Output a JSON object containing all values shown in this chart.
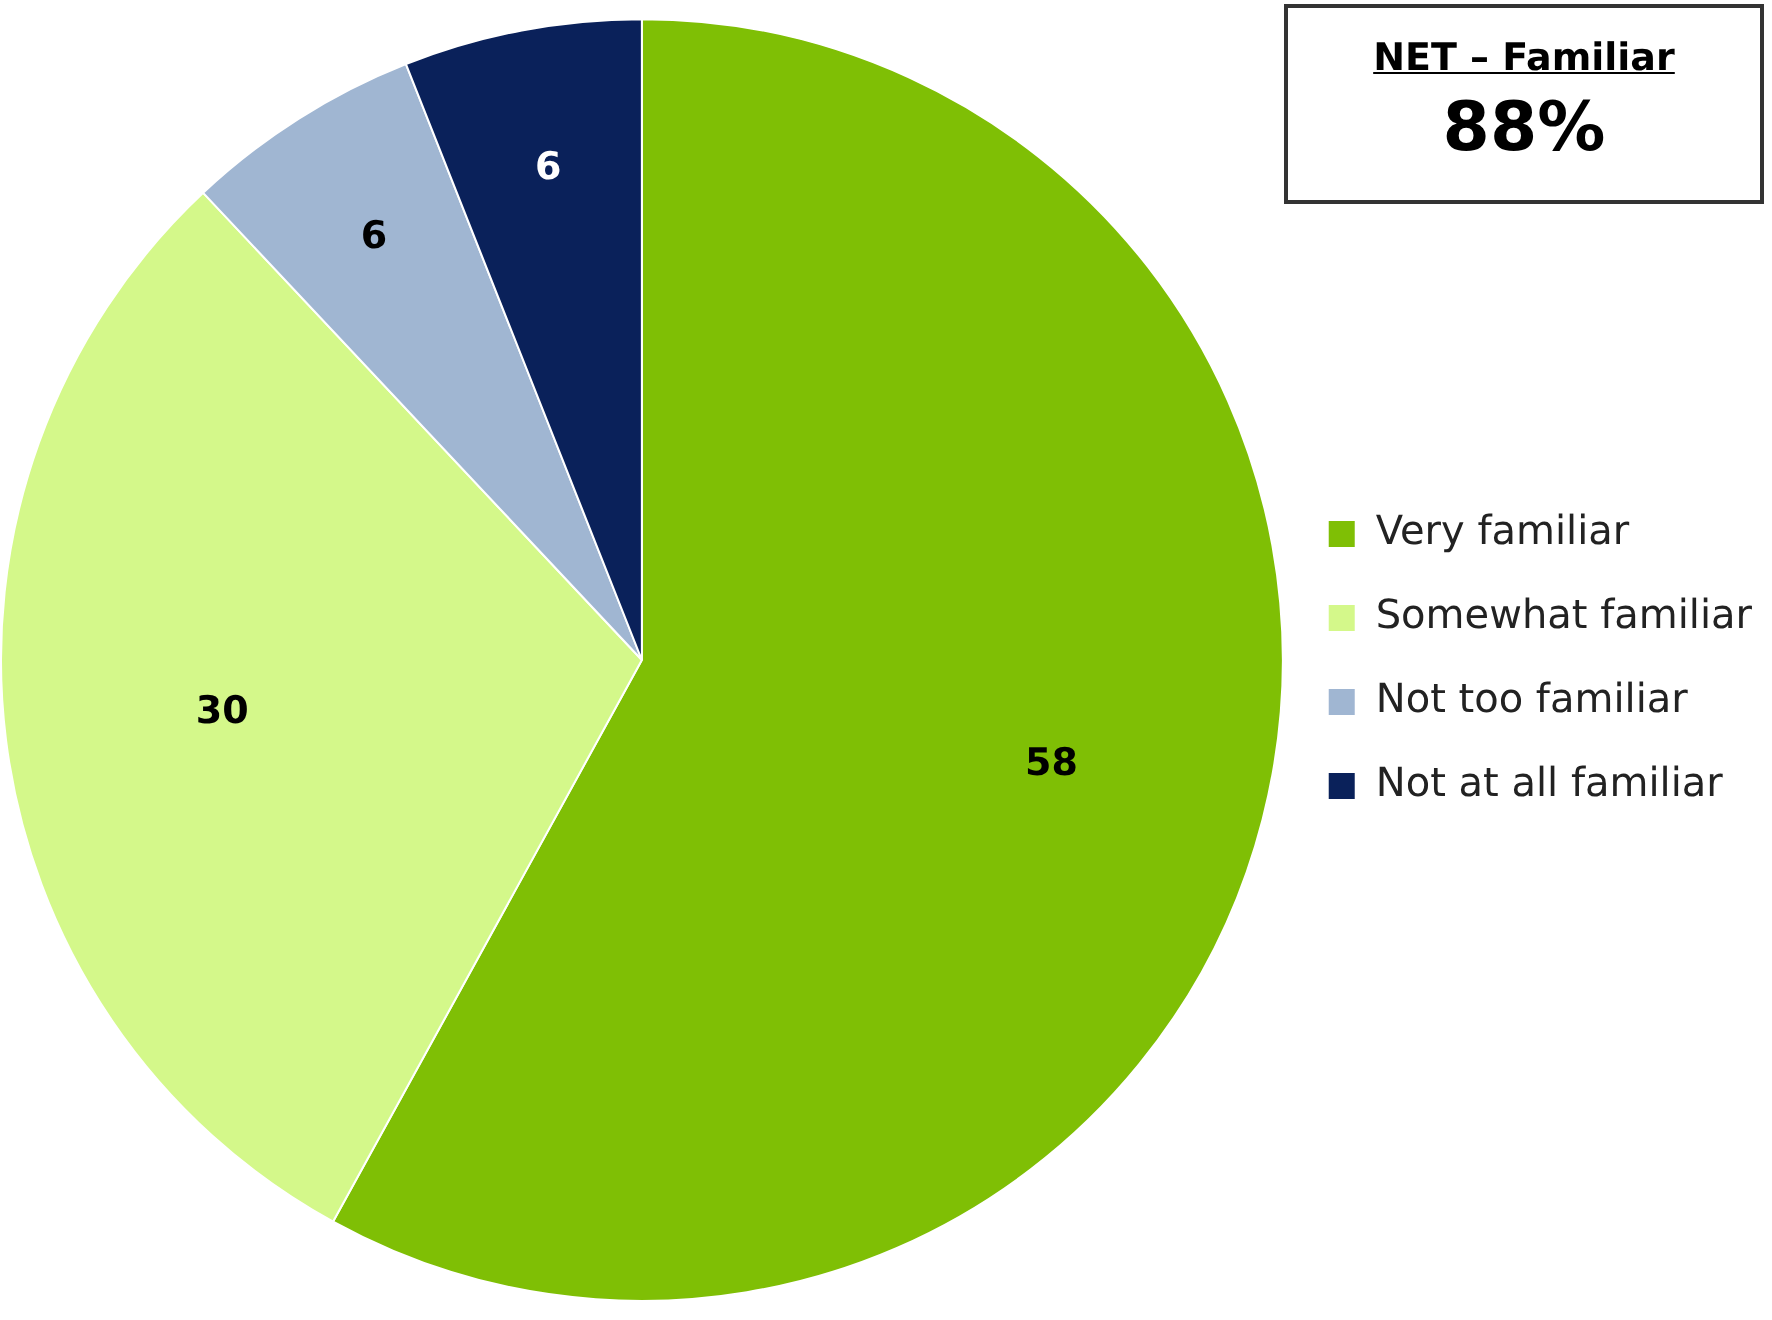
{
  "chart_data": {
    "type": "pie",
    "categories": [
      "Very familiar",
      "Somewhat familiar",
      "Not too familiar",
      "Not at all familiar"
    ],
    "values": [
      58,
      30,
      6,
      6
    ],
    "colors": [
      "#7fbf05",
      "#d4f88a",
      "#a0b6d2",
      "#0a215a"
    ],
    "data_labels": true,
    "legend": "right",
    "annotations": [
      "NET – Familiar",
      "88%"
    ]
  }
}
